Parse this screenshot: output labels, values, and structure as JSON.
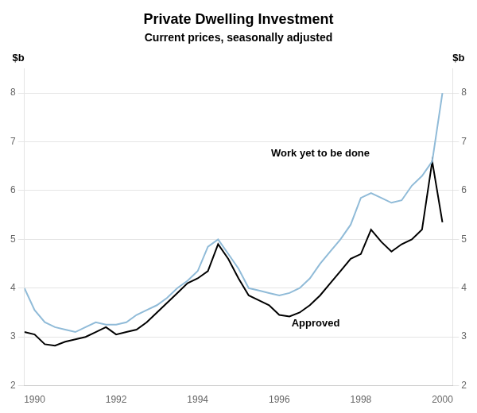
{
  "chart_data": {
    "type": "line",
    "title": "Private Dwelling Investment",
    "subtitle": "Current prices, seasonally adjusted",
    "y_label": "$b",
    "y2_label": "$b",
    "x": [
      1989.75,
      1990.0,
      1990.25,
      1990.5,
      1990.75,
      1991.0,
      1991.25,
      1991.5,
      1991.75,
      1992.0,
      1992.25,
      1992.5,
      1992.75,
      1993.0,
      1993.25,
      1993.5,
      1993.75,
      1994.0,
      1994.25,
      1994.5,
      1994.75,
      1995.0,
      1995.25,
      1995.5,
      1995.75,
      1996.0,
      1996.25,
      1996.5,
      1996.75,
      1997.0,
      1997.25,
      1997.5,
      1997.75,
      1998.0,
      1998.25,
      1998.5,
      1998.75,
      1999.0,
      1999.25,
      1999.5,
      1999.75,
      2000.0
    ],
    "series": [
      {
        "color": "#90bbd8",
        "values": [
          4.0,
          3.55,
          3.3,
          3.2,
          3.15,
          3.1,
          3.2,
          3.3,
          3.25,
          3.25,
          3.3,
          3.45,
          3.55,
          3.65,
          3.8,
          4.0,
          4.15,
          4.35,
          4.85,
          5.0,
          4.7,
          4.4,
          4.0,
          3.95,
          3.9,
          3.85,
          3.9,
          4.0,
          4.2,
          4.5,
          4.75,
          5.0,
          5.3,
          5.85,
          5.95,
          5.85,
          5.75,
          5.8,
          6.1,
          6.3,
          6.6,
          8.0
        ]
      },
      {
        "color": "#000000",
        "values": [
          3.1,
          3.05,
          2.85,
          2.82,
          2.9,
          2.95,
          3.0,
          3.1,
          3.2,
          3.05,
          3.1,
          3.15,
          3.3,
          3.5,
          3.7,
          3.9,
          4.1,
          4.2,
          4.35,
          4.9,
          4.6,
          4.2,
          3.85,
          3.75,
          3.65,
          3.45,
          3.42,
          3.5,
          3.65,
          3.85,
          4.1,
          4.35,
          4.6,
          4.7,
          5.2,
          4.95,
          4.75,
          4.9,
          5.0,
          5.2,
          6.6,
          5.35
        ]
      }
    ],
    "xlim": [
      1989.75,
      2000.25
    ],
    "xticks": [
      1990,
      1992,
      1994,
      1996,
      1998,
      2000
    ],
    "ylim": [
      2,
      8.5
    ],
    "yticks": [
      2,
      3,
      4,
      5,
      6,
      7,
      8
    ],
    "y2lim": [
      2,
      8.5
    ],
    "y2ticks": [
      2,
      3,
      4,
      5,
      6,
      7,
      8
    ],
    "grid": "y",
    "annotations": [
      {
        "text": "Approved",
        "x": 1996.3,
        "y": 3.38
      },
      {
        "text": "Work yet to be done",
        "x": 1995.8,
        "y": 6.65
      }
    ]
  }
}
